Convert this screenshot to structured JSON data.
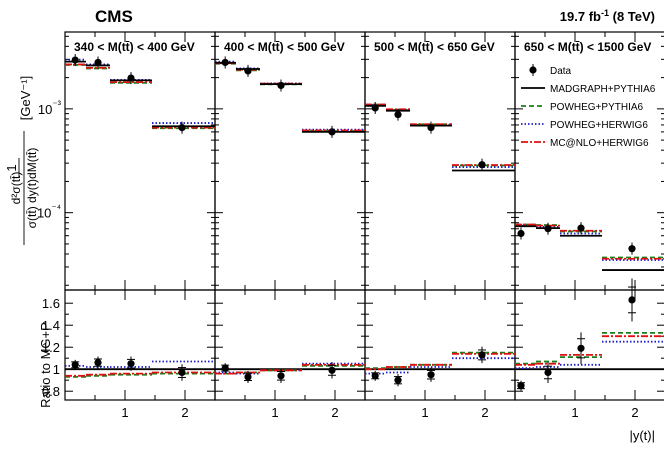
{
  "header": {
    "experiment": "CMS",
    "luminosity": "19.7 fb",
    "lumi_exp": "-1",
    "energy": "(8 TeV)"
  },
  "colors": {
    "data": "#000000",
    "madgraph": "#000000",
    "powheg_pythia": "#1a7f1a",
    "powheg_herwig": "#1c1cc8",
    "mcnlo": "#e01010"
  },
  "chart_data": {
    "type": "scatter",
    "x_label": "|y(t)|",
    "y_label_top": {
      "prefix": "1",
      "lhs_top": "d²σ(tt̄)",
      "denominator": "σ(tt̄) dy(t)dM(tt̄)",
      "unit": "[GeV⁻¹]"
    },
    "y_label_bottom": "Ratio to MG+P",
    "y_scale_top": "log",
    "ylim_top": [
      1.8e-05,
      0.0055
    ],
    "ylim_bottom": [
      0.72,
      1.72
    ],
    "xlim": [
      0,
      2.5
    ],
    "x_ticks": [
      1,
      2
    ],
    "x_tick_labels": [
      "1",
      "2"
    ],
    "y_ticks_top": [
      0.001,
      0.0001
    ],
    "y_tick_labels_top": [
      "10⁻³",
      "10⁻⁴"
    ],
    "y_ticks_bottom": [
      0.8,
      1.0,
      1.2,
      1.4,
      1.6
    ],
    "y_tick_labels_bottom": [
      "0.8",
      "1",
      "1.2",
      "1.4",
      "1.6"
    ],
    "bin_edges": [
      0,
      0.35,
      0.75,
      1.45,
      2.5
    ],
    "legend_placement": "top-right (fourth panel)",
    "legend": [
      {
        "key": "data",
        "label": "Data"
      },
      {
        "key": "madgraph",
        "label": "MADGRAPH+PYTHIA6"
      },
      {
        "key": "powheg_pythia",
        "label": "POWHEG+PYTHIA6"
      },
      {
        "key": "powheg_herwig",
        "label": "POWHEG+HERWIG6"
      },
      {
        "key": "mcnlo",
        "label": "MC@NLO+HERWIG6"
      }
    ],
    "panels": [
      {
        "label_pre": "340",
        "label_post": "400 GeV",
        "data_x": [
          0.17,
          0.55,
          1.1,
          1.95
        ],
        "data": [
          0.00295,
          0.0028,
          0.00198,
          0.00066
        ],
        "madgraph": [
          0.00285,
          0.00262,
          0.00188,
          0.00068
        ],
        "powheg_pythia": [
          0.00265,
          0.00245,
          0.00178,
          0.00065
        ],
        "powheg_herwig": [
          0.00298,
          0.00268,
          0.0019,
          0.00073
        ],
        "mcnlo": [
          0.00268,
          0.00248,
          0.00181,
          0.00066
        ],
        "ratio_data": [
          1.04,
          1.06,
          1.05,
          0.97
        ],
        "ratio_powheg_pythia": [
          0.93,
          0.94,
          0.95,
          0.96
        ],
        "ratio_powheg_herwig": [
          1.03,
          1.02,
          1.02,
          1.07
        ],
        "ratio_mcnlo": [
          0.94,
          0.95,
          0.96,
          0.97
        ]
      },
      {
        "label_pre": "400",
        "label_post": "500 GeV",
        "data_x": [
          0.17,
          0.55,
          1.1,
          1.95
        ],
        "data": [
          0.0028,
          0.00232,
          0.00168,
          0.0006
        ],
        "madgraph": [
          0.00278,
          0.00242,
          0.00173,
          0.0006
        ],
        "powheg_pythia": [
          0.00272,
          0.00235,
          0.00172,
          0.00061
        ],
        "powheg_herwig": [
          0.00285,
          0.00245,
          0.00176,
          0.00063
        ],
        "mcnlo": [
          0.00275,
          0.00238,
          0.00175,
          0.00062
        ],
        "ratio_data": [
          1.01,
          0.93,
          0.94,
          0.99
        ],
        "ratio_powheg_pythia": [
          0.96,
          0.97,
          0.99,
          1.03
        ],
        "ratio_powheg_herwig": [
          0.97,
          0.96,
          0.99,
          1.05
        ],
        "ratio_mcnlo": [
          0.96,
          0.97,
          0.99,
          1.04
        ]
      },
      {
        "label_pre": "500",
        "label_post": "650 GeV",
        "data_x": [
          0.17,
          0.55,
          1.1,
          1.95
        ],
        "data": [
          0.00102,
          0.00088,
          0.00066,
          0.00029
        ],
        "madgraph": [
          0.00107,
          0.00096,
          0.00069,
          0.000255
        ],
        "powheg_pythia": [
          0.0011,
          0.00098,
          0.00071,
          0.000285
        ],
        "powheg_herwig": [
          0.00109,
          0.00097,
          0.0007,
          0.000275
        ],
        "mcnlo": [
          0.0011,
          0.00099,
          0.00071,
          0.000288
        ],
        "ratio_data": [
          0.94,
          0.9,
          0.95,
          1.13
        ],
        "ratio_powheg_pythia": [
          1.01,
          1.02,
          1.04,
          1.15
        ],
        "ratio_powheg_herwig": [
          0.96,
          0.97,
          1.02,
          1.1
        ],
        "ratio_mcnlo": [
          1.0,
          1.02,
          1.04,
          1.14
        ]
      },
      {
        "label_pre": "650",
        "label_post": "1500 GeV",
        "data_x": [
          0.1,
          0.55,
          1.1,
          1.95
        ],
        "data": [
          6.3e-05,
          7e-05,
          7.1e-05,
          4.5e-05
        ],
        "madgraph": [
          7.4e-05,
          7.1e-05,
          6e-05,
          2.8e-05
        ],
        "powheg_pythia": [
          7.7e-05,
          7.6e-05,
          6.6e-05,
          3.7e-05
        ],
        "powheg_herwig": [
          7.5e-05,
          7.3e-05,
          6.3e-05,
          3.5e-05
        ],
        "mcnlo": [
          7.7e-05,
          7.5e-05,
          6.7e-05,
          3.6e-05
        ],
        "ratio_data": [
          0.85,
          0.97,
          1.19,
          1.63
        ],
        "ratio_powheg_pythia": [
          1.05,
          1.07,
          1.11,
          1.33
        ],
        "ratio_powheg_herwig": [
          1.01,
          1.02,
          1.04,
          1.25
        ],
        "ratio_mcnlo": [
          1.04,
          1.05,
          1.13,
          1.3
        ]
      }
    ]
  }
}
